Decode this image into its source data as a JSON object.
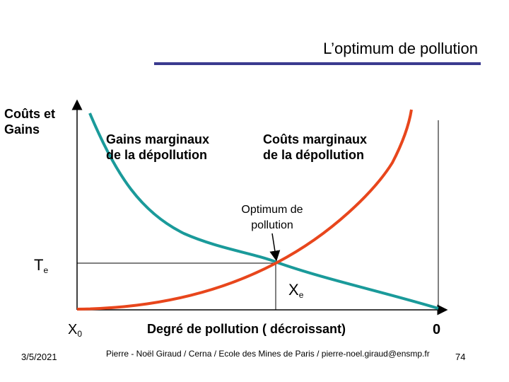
{
  "slide": {
    "title": "L’optimum de pollution"
  },
  "diagram": {
    "y_axis_label": "Coûts et Gains",
    "gains_label": "Gains marginaux de la dépollution",
    "couts_label": "Coûts marginaux de la dépollution",
    "optimum_label": "Optimum de pollution",
    "te_main": "T",
    "te_sub": "e",
    "xe_main": "X",
    "xe_sub": "e",
    "x0_main": "X",
    "x0_sub": "0",
    "x_axis_label": "Degré de pollution ( décroissant)",
    "x_axis_end": "0",
    "colors": {
      "gains_curve": "#1a9a9a",
      "couts_curve": "#e8461c",
      "axis": "#000000",
      "title_rule": "#3b3b8f"
    }
  },
  "footer": {
    "date": "3/5/2021",
    "author": "Pierre - Noël Giraud / Cerna / Ecole des Mines de Paris / pierre-noel.giraud@ensmp.fr",
    "page": "74"
  }
}
